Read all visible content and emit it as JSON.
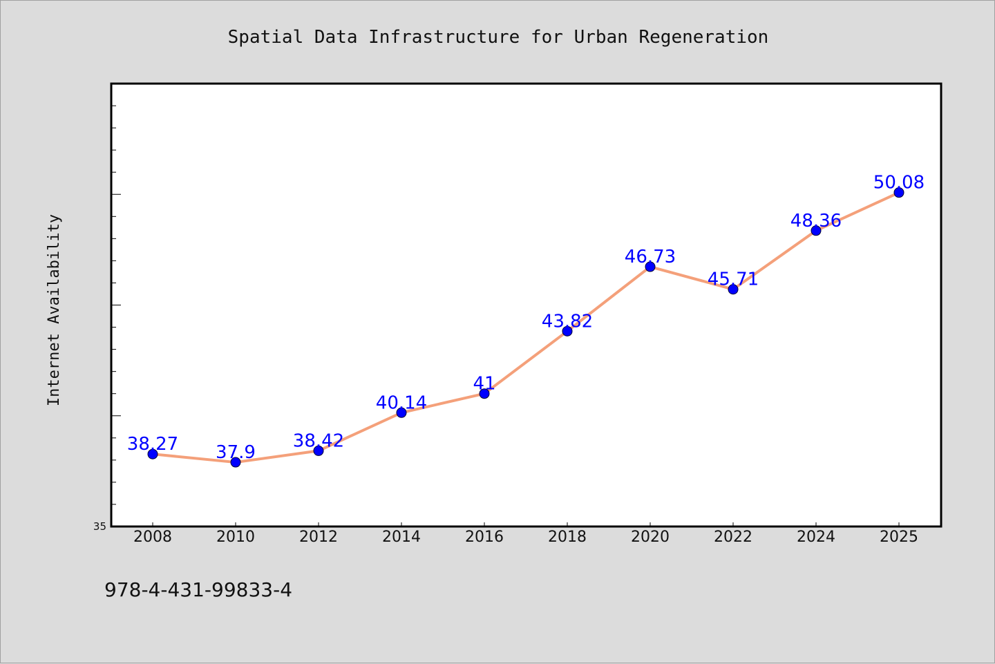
{
  "chart_data": {
    "type": "line",
    "title": "Spatial Data Infrastructure for Urban Regeneration",
    "ylabel": "Internet Availability",
    "xlabel": "",
    "categories": [
      "2008",
      "2010",
      "2012",
      "2014",
      "2016",
      "2018",
      "2020",
      "2022",
      "2024",
      "2025"
    ],
    "series": [
      {
        "values": [
          38.27,
          37.9,
          38.42,
          40.14,
          41,
          43.82,
          46.73,
          45.71,
          48.36,
          50.08
        ],
        "labels": [
          "38.27",
          "37.9",
          "38.42",
          "40.14",
          "41",
          "43.82",
          "46.73",
          "45.71",
          "48.36",
          "50.08"
        ],
        "line_color": "#f4a07a",
        "marker_color": "#0000ff"
      }
    ],
    "ylim": [
      35,
      55
    ],
    "ytick_labels": [
      "35"
    ],
    "grid": false,
    "legend": "none"
  },
  "footer": {
    "isbn": "978-4-431-99833-4"
  },
  "colors": {
    "background": "#dcdcdc",
    "plot_background": "#ffffff",
    "line": "#f4a07a",
    "marker": "#0000ff",
    "label": "#0000ff"
  }
}
